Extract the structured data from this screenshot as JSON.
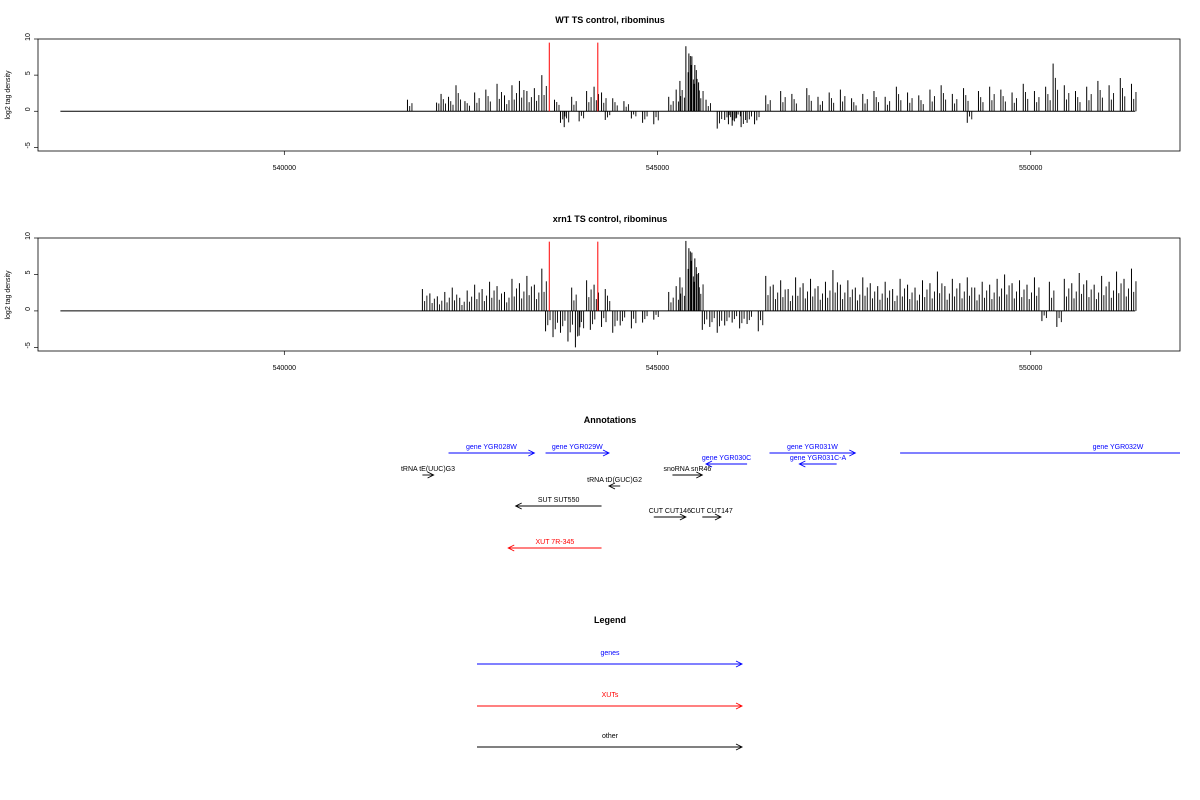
{
  "chart_data": [
    {
      "type": "bar",
      "title": "WT TS control, ribominus",
      "ylabel": "log2 tag density",
      "xlabel": "",
      "xlim": [
        536700,
        552000
      ],
      "ylim": [
        -5.5,
        10
      ],
      "x_ticks": [
        540000,
        545000,
        550000
      ],
      "x_tick_labels": [
        "540000",
        "545000",
        "550000"
      ],
      "y_ticks": [
        -5,
        0,
        5,
        10
      ],
      "y_tick_labels": [
        "-5",
        "0",
        "5",
        "10"
      ],
      "baseline_range": [
        537000,
        551400
      ],
      "markers": [
        543550,
        544200
      ],
      "bars": [
        [
          541650,
          1.6
        ],
        [
          542040,
          1.2
        ],
        [
          542100,
          2.4
        ],
        [
          542200,
          2.0
        ],
        [
          542300,
          3.6
        ],
        [
          542420,
          1.4
        ],
        [
          542550,
          2.6
        ],
        [
          542700,
          3.0
        ],
        [
          542850,
          3.8
        ],
        [
          542950,
          2.2
        ],
        [
          543050,
          3.6
        ],
        [
          543150,
          4.2
        ],
        [
          543250,
          2.8
        ],
        [
          543350,
          3.2
        ],
        [
          543450,
          5.0
        ],
        [
          543620,
          1.6
        ],
        [
          543700,
          -1.6
        ],
        [
          543750,
          -2.2
        ],
        [
          543850,
          2.0
        ],
        [
          543950,
          -1.4
        ],
        [
          544050,
          2.8
        ],
        [
          544150,
          3.4
        ],
        [
          544250,
          2.6
        ],
        [
          544300,
          -1.2
        ],
        [
          544400,
          1.8
        ],
        [
          544550,
          1.4
        ],
        [
          544650,
          -1.0
        ],
        [
          544800,
          -1.6
        ],
        [
          544950,
          -1.8
        ],
        [
          545150,
          2.0
        ],
        [
          545250,
          3.0
        ],
        [
          545300,
          4.2
        ],
        [
          545380,
          9.0
        ],
        [
          545420,
          8.0
        ],
        [
          545460,
          7.6
        ],
        [
          545500,
          6.4
        ],
        [
          545550,
          4.0
        ],
        [
          545650,
          1.6
        ],
        [
          545800,
          -2.4
        ],
        [
          545900,
          -1.2
        ],
        [
          545950,
          -1.8
        ],
        [
          546000,
          -2.0
        ],
        [
          546050,
          -1.0
        ],
        [
          546120,
          -2.2
        ],
        [
          546200,
          -1.6
        ],
        [
          546300,
          -1.8
        ],
        [
          546450,
          2.2
        ],
        [
          546650,
          2.8
        ],
        [
          546800,
          2.4
        ],
        [
          547000,
          3.2
        ],
        [
          547150,
          2.0
        ],
        [
          547300,
          2.6
        ],
        [
          547450,
          3.0
        ],
        [
          547600,
          1.8
        ],
        [
          547750,
          2.4
        ],
        [
          547900,
          2.8
        ],
        [
          548050,
          2.0
        ],
        [
          548200,
          3.4
        ],
        [
          548350,
          2.6
        ],
        [
          548500,
          2.2
        ],
        [
          548650,
          3.0
        ],
        [
          548800,
          3.6
        ],
        [
          548950,
          2.4
        ],
        [
          549100,
          3.2
        ],
        [
          549150,
          -1.6
        ],
        [
          549300,
          2.8
        ],
        [
          549450,
          3.4
        ],
        [
          549600,
          3.0
        ],
        [
          549750,
          2.6
        ],
        [
          549900,
          3.8
        ],
        [
          550050,
          2.8
        ],
        [
          550200,
          3.4
        ],
        [
          550300,
          6.6
        ],
        [
          550450,
          3.6
        ],
        [
          550600,
          2.8
        ],
        [
          550750,
          3.4
        ],
        [
          550900,
          4.2
        ],
        [
          551050,
          3.6
        ],
        [
          551200,
          4.6
        ],
        [
          551350,
          3.8
        ]
      ]
    },
    {
      "type": "bar",
      "title": "xrn1 TS control, ribominus",
      "ylabel": "log2 tag density",
      "xlabel": "",
      "xlim": [
        536700,
        552000
      ],
      "ylim": [
        -5.5,
        10
      ],
      "x_ticks": [
        540000,
        545000,
        550000
      ],
      "x_tick_labels": [
        "540000",
        "545000",
        "550000"
      ],
      "y_ticks": [
        -5,
        0,
        5,
        10
      ],
      "y_tick_labels": [
        "-5",
        "0",
        "5",
        "10"
      ],
      "baseline_range": [
        537000,
        551400
      ],
      "markers": [
        543550,
        544200
      ],
      "bars": [
        [
          541850,
          3.0
        ],
        [
          541950,
          2.4
        ],
        [
          542050,
          2.0
        ],
        [
          542150,
          2.6
        ],
        [
          542250,
          3.2
        ],
        [
          542350,
          1.8
        ],
        [
          542450,
          2.8
        ],
        [
          542550,
          3.6
        ],
        [
          542650,
          3.0
        ],
        [
          542750,
          4.0
        ],
        [
          542850,
          3.4
        ],
        [
          542950,
          2.6
        ],
        [
          543050,
          4.4
        ],
        [
          543150,
          3.8
        ],
        [
          543250,
          4.8
        ],
        [
          543350,
          3.6
        ],
        [
          543450,
          5.8
        ],
        [
          543500,
          -2.8
        ],
        [
          543600,
          -3.6
        ],
        [
          543700,
          -3.0
        ],
        [
          543800,
          -4.2
        ],
        [
          543850,
          3.2
        ],
        [
          543900,
          -5.0
        ],
        [
          543950,
          -3.4
        ],
        [
          544050,
          4.2
        ],
        [
          544100,
          -2.6
        ],
        [
          544150,
          3.6
        ],
        [
          544250,
          -2.2
        ],
        [
          544300,
          3.0
        ],
        [
          544400,
          -3.0
        ],
        [
          544500,
          -2.0
        ],
        [
          544650,
          -2.4
        ],
        [
          544800,
          -1.6
        ],
        [
          544950,
          -1.2
        ],
        [
          545150,
          2.6
        ],
        [
          545250,
          3.4
        ],
        [
          545300,
          4.6
        ],
        [
          545380,
          9.6
        ],
        [
          545420,
          8.6
        ],
        [
          545460,
          8.0
        ],
        [
          545500,
          7.2
        ],
        [
          545550,
          5.2
        ],
        [
          545600,
          -2.6
        ],
        [
          545700,
          -2.2
        ],
        [
          545800,
          -3.0
        ],
        [
          545900,
          -2.0
        ],
        [
          546000,
          -1.6
        ],
        [
          546100,
          -2.4
        ],
        [
          546200,
          -1.8
        ],
        [
          546350,
          -2.8
        ],
        [
          546450,
          4.8
        ],
        [
          546550,
          3.6
        ],
        [
          546650,
          4.2
        ],
        [
          546750,
          3.0
        ],
        [
          546850,
          4.6
        ],
        [
          546950,
          3.8
        ],
        [
          547050,
          4.4
        ],
        [
          547150,
          3.4
        ],
        [
          547250,
          4.0
        ],
        [
          547350,
          5.6
        ],
        [
          547450,
          3.6
        ],
        [
          547550,
          4.2
        ],
        [
          547650,
          3.2
        ],
        [
          547750,
          4.6
        ],
        [
          547850,
          3.8
        ],
        [
          547950,
          3.4
        ],
        [
          548050,
          4.0
        ],
        [
          548150,
          3.0
        ],
        [
          548250,
          4.4
        ],
        [
          548350,
          3.6
        ],
        [
          548450,
          3.2
        ],
        [
          548550,
          4.2
        ],
        [
          548650,
          3.8
        ],
        [
          548750,
          5.4
        ],
        [
          548850,
          3.4
        ],
        [
          548950,
          4.4
        ],
        [
          549050,
          3.8
        ],
        [
          549150,
          4.6
        ],
        [
          549250,
          3.2
        ],
        [
          549350,
          4.0
        ],
        [
          549450,
          3.6
        ],
        [
          549550,
          4.4
        ],
        [
          549650,
          5.0
        ],
        [
          549750,
          3.8
        ],
        [
          549850,
          4.2
        ],
        [
          549950,
          3.6
        ],
        [
          550050,
          4.6
        ],
        [
          550150,
          -1.4
        ],
        [
          550250,
          4.0
        ],
        [
          550350,
          -2.2
        ],
        [
          550450,
          4.4
        ],
        [
          550550,
          3.8
        ],
        [
          550650,
          5.2
        ],
        [
          550750,
          4.2
        ],
        [
          550850,
          3.6
        ],
        [
          550950,
          4.8
        ],
        [
          551050,
          4.0
        ],
        [
          551150,
          5.4
        ],
        [
          551250,
          4.4
        ],
        [
          551350,
          5.8
        ]
      ]
    }
  ],
  "annotations": {
    "title": "Annotations",
    "features": [
      {
        "label": "gene YGR028W",
        "color": "#0000ff",
        "start": 542200,
        "end": 543350,
        "dir": "right",
        "row": 0
      },
      {
        "label": "gene YGR029W",
        "color": "#0000ff",
        "start": 543500,
        "end": 544350,
        "dir": "right",
        "row": 0
      },
      {
        "label": "gene YGR031W",
        "color": "#0000ff",
        "start": 546500,
        "end": 547650,
        "dir": "right",
        "row": 0
      },
      {
        "label": "gene YGR032W",
        "color": "#0000ff",
        "start": 548250,
        "end": 552000,
        "dir": "none",
        "row": 0
      },
      {
        "label": "gene YGR030C",
        "color": "#0000ff",
        "start": 545650,
        "end": 546200,
        "dir": "left",
        "row": 1
      },
      {
        "label": "gene YGR031C-A",
        "color": "#0000ff",
        "start": 546900,
        "end": 547400,
        "dir": "left",
        "row": 1
      },
      {
        "label": "tRNA tE(UUC)G3",
        "color": "#000000",
        "start": 541850,
        "end": 542000,
        "dir": "right",
        "row": 2
      },
      {
        "label": "snoRNA snR46",
        "color": "#000000",
        "start": 545200,
        "end": 545600,
        "dir": "right",
        "row": 2
      },
      {
        "label": "tRNA tD(GUC)G2",
        "color": "#000000",
        "start": 544350,
        "end": 544500,
        "dir": "left",
        "row": 3
      },
      {
        "label": "SUT SUT550",
        "color": "#000000",
        "start": 543100,
        "end": 544250,
        "dir": "left",
        "row": 4
      },
      {
        "label": "CUT CUT146",
        "color": "#000000",
        "start": 544950,
        "end": 545380,
        "dir": "right",
        "row": 5
      },
      {
        "label": "CUT CUT147",
        "color": "#000000",
        "start": 545600,
        "end": 545850,
        "dir": "right",
        "row": 5
      },
      {
        "label": "XUT 7R-345",
        "color": "#ff0000",
        "start": 543000,
        "end": 544250,
        "dir": "left",
        "row": 6
      }
    ]
  },
  "legend": {
    "title": "Legend",
    "items": [
      {
        "label": "genes",
        "color": "#0000ff"
      },
      {
        "label": "XUTs",
        "color": "#ff0000"
      },
      {
        "label": "other",
        "color": "#000000"
      }
    ]
  }
}
